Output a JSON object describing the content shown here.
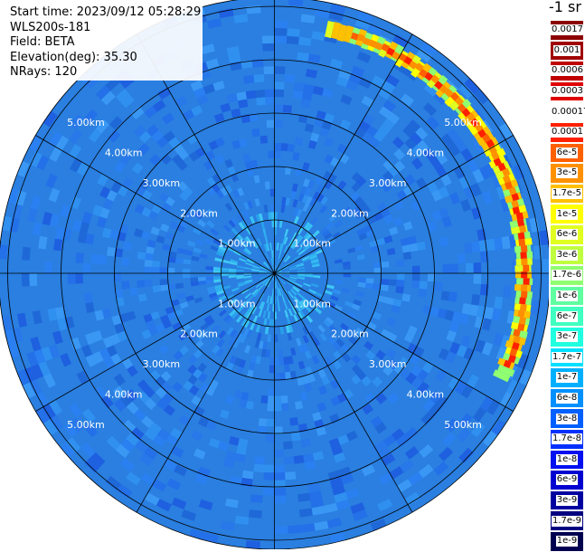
{
  "info": {
    "start_time": "Start time: 2023/09/12 05:28:29",
    "instrument": "WLS200s-181",
    "field": "Field: BETA",
    "elevation": "Elevation(deg): 35.30",
    "nrays": "NRays: 120"
  },
  "range_labels": [
    "1.00km",
    "2.00km",
    "3.00km",
    "4.00km",
    "5.00km"
  ],
  "colorbar": {
    "unit": "-1 sr",
    "levels": [
      {
        "label": "0.0017",
        "color": "#8b0000"
      },
      {
        "label": "0.001",
        "color": "#a00000"
      },
      {
        "label": "0.0006",
        "color": "#c00000"
      },
      {
        "label": "0.0003",
        "color": "#e00000"
      },
      {
        "label": "0.00017",
        "color": "#ffffff"
      },
      {
        "label": "0.0001",
        "color": "#ff2000"
      },
      {
        "label": "6e-5",
        "color": "#ff6000"
      },
      {
        "label": "3e-5",
        "color": "#ff9000"
      },
      {
        "label": "1.7e-5",
        "color": "#ffc000"
      },
      {
        "label": "1e-5",
        "color": "#ffff00"
      },
      {
        "label": "6e-6",
        "color": "#e0ff20"
      },
      {
        "label": "3e-6",
        "color": "#c0ff40"
      },
      {
        "label": "1.7e-6",
        "color": "#90ff70"
      },
      {
        "label": "1e-6",
        "color": "#60ffa0"
      },
      {
        "label": "6e-7",
        "color": "#40ffc0"
      },
      {
        "label": "3e-7",
        "color": "#20ffe0"
      },
      {
        "label": "1.7e-7",
        "color": "#00e0ff"
      },
      {
        "label": "1e-7",
        "color": "#00b0ff"
      },
      {
        "label": "6e-8",
        "color": "#0090ff"
      },
      {
        "label": "3e-8",
        "color": "#0060ff"
      },
      {
        "label": "1.7e-8",
        "color": "#0030ff"
      },
      {
        "label": "1e-8",
        "color": "#0010f0"
      },
      {
        "label": "6e-9",
        "color": "#0000d0"
      },
      {
        "label": "3e-9",
        "color": "#0000a0"
      },
      {
        "label": "1.7e-9",
        "color": "#000080"
      },
      {
        "label": "1e-9",
        "color": "#000050"
      }
    ]
  },
  "colors": {
    "background_field": "#2a7fe0",
    "near_field": "#30b8f0",
    "grid": "#000000",
    "range_label": "#ffffff"
  }
}
